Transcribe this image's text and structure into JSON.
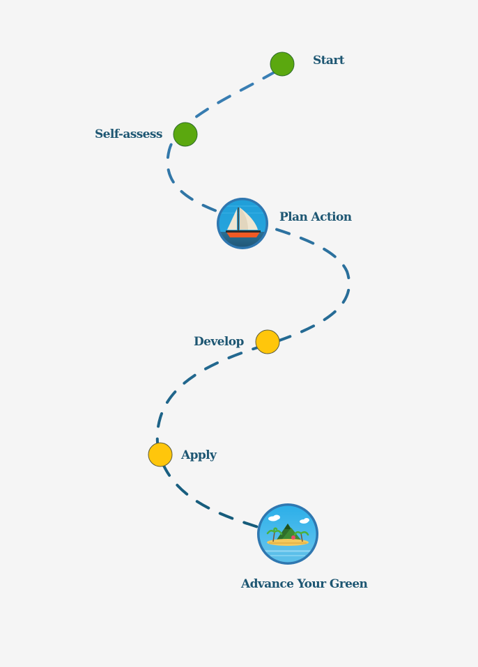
{
  "colors": {
    "background": "#f5f5f5",
    "label_text": "#1d5672",
    "path_start": "#3a7fb5",
    "path_end": "#155b7a",
    "complete_node": "#5ba80f",
    "pending_node": "#ffc60b",
    "node_outline": "#2e6a2a",
    "milestone_ring": "#2f77b0"
  },
  "steps": [
    {
      "id": "start",
      "label": "Start",
      "status": "complete"
    },
    {
      "id": "self-assess",
      "label": "Self-assess",
      "status": "complete"
    },
    {
      "id": "plan-action",
      "label": "Plan Action",
      "status": "current",
      "icon": "sailboat-icon"
    },
    {
      "id": "develop",
      "label": "Develop",
      "status": "pending"
    },
    {
      "id": "apply",
      "label": "Apply",
      "status": "pending"
    },
    {
      "id": "advance-your-green",
      "label": "Advance Your Green",
      "status": "destination",
      "icon": "island-icon"
    }
  ]
}
